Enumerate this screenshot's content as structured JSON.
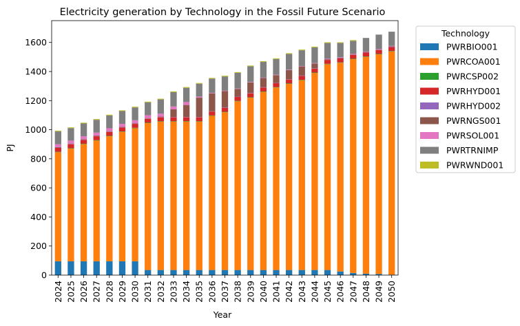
{
  "chart_data": {
    "type": "bar",
    "stacked": true,
    "title": "Electricity generation by Technology in the Fossil Future Scenario",
    "xlabel": "Year",
    "ylabel": "PJ",
    "ylim": [
      0,
      1750
    ],
    "yticks": [
      0,
      200,
      400,
      600,
      800,
      1000,
      1200,
      1400,
      1600
    ],
    "legend_title": "Technology",
    "legend_position": "outside-right",
    "categories": [
      "2024",
      "2025",
      "2026",
      "2027",
      "2028",
      "2029",
      "2030",
      "2031",
      "2032",
      "2033",
      "2034",
      "2035",
      "2036",
      "2037",
      "2038",
      "2039",
      "2040",
      "2041",
      "2042",
      "2043",
      "2044",
      "2045",
      "2046",
      "2047",
      "2048",
      "2049",
      "2050"
    ],
    "series": [
      {
        "name": "PWRBIO001",
        "color": "#1f77b4",
        "values": [
          95,
          95,
          95,
          95,
          95,
          95,
          95,
          35,
          35,
          35,
          35,
          35,
          35,
          35,
          35,
          35,
          35,
          35,
          35,
          35,
          35,
          35,
          25,
          15,
          10,
          8,
          3
        ]
      },
      {
        "name": "PWRCOA001",
        "color": "#ff7f0e",
        "values": [
          750,
          775,
          805,
          830,
          860,
          890,
          915,
          1010,
          1020,
          1020,
          1020,
          1020,
          1060,
          1085,
          1160,
          1185,
          1225,
          1255,
          1280,
          1305,
          1355,
          1415,
          1435,
          1470,
          1490,
          1510,
          1535
        ]
      },
      {
        "name": "PWRCSP002",
        "color": "#2ca02c",
        "values": [
          3,
          3,
          3,
          3,
          3,
          3,
          3,
          3,
          3,
          3,
          3,
          3,
          3,
          3,
          3,
          3,
          3,
          3,
          3,
          3,
          3,
          3,
          3,
          3,
          3,
          3,
          3
        ]
      },
      {
        "name": "PWRHYD001",
        "color": "#d62728",
        "values": [
          27,
          27,
          27,
          27,
          27,
          27,
          27,
          27,
          27,
          27,
          27,
          27,
          27,
          27,
          27,
          27,
          27,
          27,
          27,
          27,
          27,
          27,
          27,
          27,
          27,
          27,
          27
        ]
      },
      {
        "name": "PWRHYD002",
        "color": "#9467bd",
        "values": [
          2,
          2,
          2,
          2,
          2,
          2,
          2,
          2,
          2,
          2,
          2,
          2,
          2,
          2,
          2,
          2,
          2,
          2,
          2,
          2,
          2,
          2,
          2,
          2,
          2,
          2,
          2
        ]
      },
      {
        "name": "PWRNGS001",
        "color": "#8c564b",
        "values": [
          3,
          3,
          3,
          3,
          3,
          3,
          3,
          3,
          3,
          53,
          83,
          133,
          123,
          113,
          53,
          73,
          63,
          53,
          63,
          63,
          33,
          3,
          3,
          3,
          3,
          3,
          3
        ]
      },
      {
        "name": "PWRSOL001",
        "color": "#e377c2",
        "values": [
          20,
          20,
          20,
          20,
          20,
          20,
          20,
          20,
          20,
          20,
          20,
          8,
          3,
          3,
          3,
          3,
          3,
          3,
          3,
          3,
          3,
          3,
          3,
          3,
          3,
          3,
          3
        ]
      },
      {
        "name": "PWRTRNIMP",
        "color": "#7f7f7f",
        "values": [
          88,
          86,
          88,
          88,
          88,
          88,
          88,
          88,
          98,
          98,
          98,
          88,
          98,
          98,
          108,
          108,
          108,
          108,
          108,
          108,
          108,
          108,
          98,
          88,
          93,
          98,
          98
        ]
      },
      {
        "name": "PWRWND001",
        "color": "#bcbd22",
        "values": [
          5,
          5,
          5,
          5,
          5,
          5,
          5,
          5,
          5,
          5,
          5,
          5,
          5,
          5,
          5,
          5,
          5,
          5,
          5,
          5,
          5,
          5,
          5,
          5,
          0,
          0,
          0
        ]
      }
    ]
  }
}
